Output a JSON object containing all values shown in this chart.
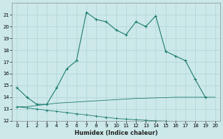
{
  "xlabel": "Humidex (Indice chaleur)",
  "bg_color": "#cce8e8",
  "grid_color": "#aed4d4",
  "line_color": "#1a7a6e",
  "x_all": [
    0,
    1,
    2,
    3,
    4,
    5,
    6,
    7,
    8,
    9,
    10,
    11,
    12,
    13,
    14,
    15,
    16,
    17,
    18,
    19,
    20
  ],
  "y_main": [
    14.8,
    14.0,
    13.4,
    13.4,
    14.8,
    16.4,
    17.1,
    21.2,
    20.6,
    20.4,
    19.7,
    19.3,
    20.4,
    20.0,
    20.9,
    17.9,
    17.5,
    17.1,
    15.5,
    14.0,
    null
  ],
  "y_line2": [
    13.2,
    13.2,
    13.3,
    13.4,
    13.5,
    13.55,
    13.6,
    13.65,
    13.7,
    13.75,
    13.8,
    13.85,
    13.9,
    13.92,
    13.95,
    13.97,
    14.0,
    14.0,
    14.0,
    14.0,
    14.0
  ],
  "y_line3": [
    13.2,
    13.1,
    13.0,
    12.9,
    12.8,
    12.7,
    12.6,
    12.5,
    12.4,
    12.3,
    12.2,
    12.15,
    12.1,
    12.05,
    12.0,
    11.98,
    11.95,
    11.9,
    11.85,
    11.8,
    11.78
  ],
  "ylim": [
    12,
    22
  ],
  "xlim": [
    -0.5,
    20.5
  ],
  "yticks": [
    12,
    13,
    14,
    15,
    16,
    17,
    18,
    19,
    20,
    21
  ],
  "xticks": [
    0,
    1,
    2,
    3,
    4,
    5,
    6,
    7,
    8,
    9,
    10,
    11,
    12,
    13,
    14,
    15,
    16,
    17,
    18,
    19,
    20
  ]
}
